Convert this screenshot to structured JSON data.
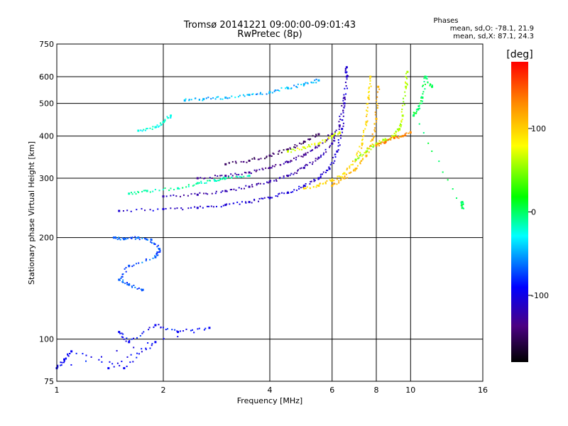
{
  "title": "Tromsø 20141221 09:00:00-09:01:43",
  "subtitle": "RwPretec (8p)",
  "phase_box": {
    "heading": "Phases",
    "line_o": "mean, sd,O: -78.1, 21.9",
    "line_x": "mean, sd,X:  87.1, 24.3"
  },
  "chart_data": {
    "type": "scatter",
    "xlabel": "Frequency [MHz]",
    "ylabel": "Stationary phase Virtual Height [km]",
    "x_scale": "log",
    "y_scale": "log",
    "xlim": [
      1,
      16
    ],
    "ylim": [
      75,
      750
    ],
    "x_ticks": [
      1,
      2,
      4,
      6,
      8,
      10,
      16
    ],
    "y_ticks": [
      75,
      100,
      200,
      300,
      400,
      500,
      600,
      750
    ],
    "x_gridlines": [
      2,
      4,
      6,
      8,
      10
    ],
    "y_gridlines": [
      100,
      200,
      300,
      400,
      500,
      600
    ],
    "colorbar": {
      "label": "[deg]",
      "range": [
        -180,
        180
      ],
      "ticks": [
        -100,
        0,
        100
      ],
      "colors": [
        "#000000",
        "#4b0082",
        "#0000ff",
        "#00ffff",
        "#00ff00",
        "#ffff00",
        "#ff8c00",
        "#ff0000"
      ]
    },
    "series": [
      {
        "color_phase": -95,
        "points": [
          [
            1.5,
            240
          ],
          [
            2.0,
            243
          ],
          [
            2.5,
            245
          ],
          [
            3.0,
            250
          ],
          [
            3.5,
            255
          ],
          [
            4.0,
            262
          ],
          [
            4.5,
            272
          ],
          [
            5.0,
            285
          ],
          [
            5.5,
            300
          ],
          [
            5.9,
            320
          ],
          [
            6.2,
            360
          ],
          [
            6.4,
            420
          ],
          [
            6.5,
            500
          ],
          [
            6.6,
            600
          ],
          [
            6.6,
            640
          ]
        ]
      },
      {
        "color_phase": -110,
        "points": [
          [
            2.0,
            265
          ],
          [
            2.5,
            268
          ],
          [
            3.0,
            275
          ],
          [
            3.5,
            283
          ],
          [
            4.0,
            293
          ],
          [
            4.5,
            305
          ],
          [
            5.0,
            322
          ],
          [
            5.5,
            345
          ],
          [
            6.0,
            380
          ],
          [
            6.3,
            430
          ],
          [
            6.5,
            520
          ]
        ]
      },
      {
        "color_phase": -120,
        "points": [
          [
            2.5,
            300
          ],
          [
            3.0,
            305
          ],
          [
            3.5,
            312
          ],
          [
            4.0,
            322
          ],
          [
            4.5,
            335
          ],
          [
            5.0,
            352
          ],
          [
            5.5,
            375
          ],
          [
            6.0,
            405
          ]
        ]
      },
      {
        "color_phase": -140,
        "points": [
          [
            3.0,
            330
          ],
          [
            3.5,
            338
          ],
          [
            4.0,
            350
          ],
          [
            4.5,
            365
          ],
          [
            5.0,
            385
          ],
          [
            5.5,
            405
          ]
        ]
      },
      {
        "color_phase": 70,
        "points": [
          [
            4.5,
            360
          ],
          [
            5.0,
            370
          ],
          [
            5.5,
            380
          ],
          [
            6.0,
            400
          ],
          [
            6.3,
            410
          ]
        ]
      },
      {
        "color_phase": 95,
        "points": [
          [
            5.0,
            280
          ],
          [
            5.5,
            285
          ],
          [
            6.0,
            295
          ],
          [
            6.5,
            310
          ],
          [
            7.0,
            340
          ],
          [
            7.3,
            380
          ],
          [
            7.5,
            440
          ],
          [
            7.6,
            520
          ],
          [
            7.7,
            600
          ]
        ]
      },
      {
        "color_phase": 110,
        "points": [
          [
            6.0,
            285
          ],
          [
            6.5,
            300
          ],
          [
            7.0,
            320
          ],
          [
            7.5,
            350
          ],
          [
            7.8,
            390
          ],
          [
            8.0,
            450
          ],
          [
            8.1,
            560
          ]
        ]
      },
      {
        "color_phase": 60,
        "points": [
          [
            7.0,
            340
          ],
          [
            7.5,
            360
          ],
          [
            8.0,
            380
          ],
          [
            8.5,
            390
          ],
          [
            9.0,
            400
          ],
          [
            9.3,
            420
          ],
          [
            9.5,
            460
          ],
          [
            9.7,
            560
          ],
          [
            9.8,
            620
          ]
        ]
      },
      {
        "color_phase": 130,
        "points": [
          [
            8.0,
            375
          ],
          [
            8.5,
            385
          ],
          [
            9.0,
            395
          ],
          [
            9.5,
            400
          ],
          [
            10.0,
            410
          ]
        ]
      },
      {
        "color_phase": -40,
        "points": [
          [
            2.3,
            510
          ],
          [
            2.6,
            515
          ],
          [
            3.0,
            520
          ],
          [
            3.5,
            530
          ],
          [
            4.0,
            540
          ],
          [
            4.5,
            555
          ],
          [
            5.0,
            570
          ],
          [
            5.5,
            585
          ]
        ]
      },
      {
        "color_phase": -20,
        "points": [
          [
            1.7,
            415
          ],
          [
            1.9,
            425
          ],
          [
            2.0,
            440
          ],
          [
            2.1,
            460
          ]
        ]
      },
      {
        "color_phase": -60,
        "points": [
          [
            1.45,
            200
          ],
          [
            1.55,
            198
          ],
          [
            1.7,
            200
          ],
          [
            1.85,
            197
          ],
          [
            1.95,
            185
          ],
          [
            1.9,
            175
          ],
          [
            1.6,
            165
          ],
          [
            1.5,
            150
          ],
          [
            1.6,
            145
          ],
          [
            1.75,
            140
          ]
        ]
      },
      {
        "color_phase": -80,
        "points": [
          [
            1.5,
            105
          ],
          [
            1.6,
            98
          ],
          [
            1.9,
            110
          ],
          [
            2.2,
            105
          ],
          [
            2.7,
            108
          ],
          [
            1.0,
            82
          ],
          [
            1.05,
            87
          ],
          [
            1.1,
            92
          ],
          [
            1.55,
            82
          ],
          [
            1.9,
            98
          ],
          [
            1.4,
            82
          ]
        ]
      },
      {
        "color_phase": -10,
        "points": [
          [
            1.6,
            270
          ],
          [
            1.8,
            275
          ],
          [
            2.2,
            280
          ],
          [
            2.5,
            290
          ],
          [
            2.8,
            295
          ],
          [
            3.0,
            300
          ],
          [
            3.5,
            305
          ]
        ]
      },
      {
        "color_phase": 10,
        "points": [
          [
            14.0,
            255
          ],
          [
            14.0,
            245
          ],
          [
            10.2,
            460
          ],
          [
            10.5,
            480
          ],
          [
            10.8,
            520
          ],
          [
            11.0,
            600
          ],
          [
            11.5,
            560
          ]
        ]
      }
    ]
  }
}
